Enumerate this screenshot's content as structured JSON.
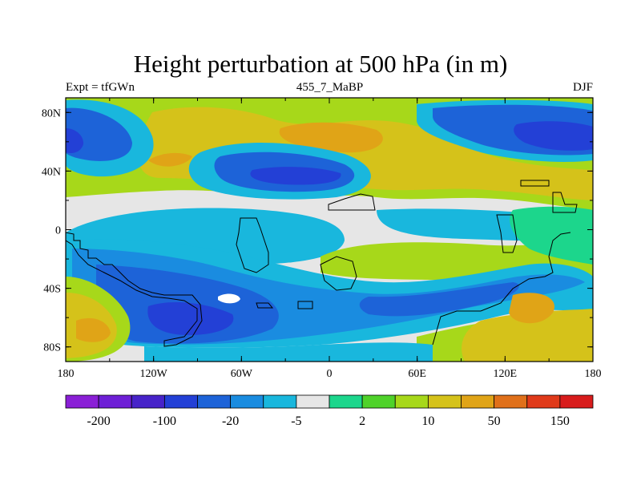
{
  "chart_data": {
    "type": "heatmap",
    "title": "Height perturbation at 500 hPa (in m)",
    "subtitle_left": "Expt = tfGWn",
    "subtitle_center": "455_7_MaBP",
    "subtitle_right": "DJF",
    "x_ticks": [
      "180",
      "120W",
      "60W",
      "0",
      "60E",
      "120E",
      "180"
    ],
    "y_ticks": [
      "80N",
      "40N",
      "0",
      "40S",
      "80S"
    ],
    "xlim": [
      -180,
      180
    ],
    "ylim": [
      -90,
      90
    ],
    "colorbar": {
      "labels": [
        "-200",
        "-100",
        "-20",
        "-5",
        "2",
        "10",
        "50",
        "150"
      ],
      "colors": [
        "#8a1fd6",
        "#6e1fd6",
        "#4723c9",
        "#2340d6",
        "#1d63d8",
        "#1a8ce0",
        "#19b7dd",
        "#e6e6e6",
        "#1cd68c",
        "#4fd22a",
        "#a7d81a",
        "#d5c21a",
        "#e0a417",
        "#e0701a",
        "#e03a1a",
        "#d81c1c"
      ]
    },
    "field_levels": [
      {
        "level": "strong-negative",
        "color": "#2340d6"
      },
      {
        "level": "negative",
        "color": "#1d63d8"
      },
      {
        "level": "weak-negative",
        "color": "#1a8ce0"
      },
      {
        "level": "slight-negative",
        "color": "#19b7dd"
      },
      {
        "level": "near-zero",
        "color": "#e6e6e6"
      },
      {
        "level": "slight-positive",
        "color": "#1cd68c"
      },
      {
        "level": "weak-positive",
        "color": "#a7d81a"
      },
      {
        "level": "positive",
        "color": "#d5c21a"
      },
      {
        "level": "strong-positive",
        "color": "#e0a417"
      }
    ]
  }
}
